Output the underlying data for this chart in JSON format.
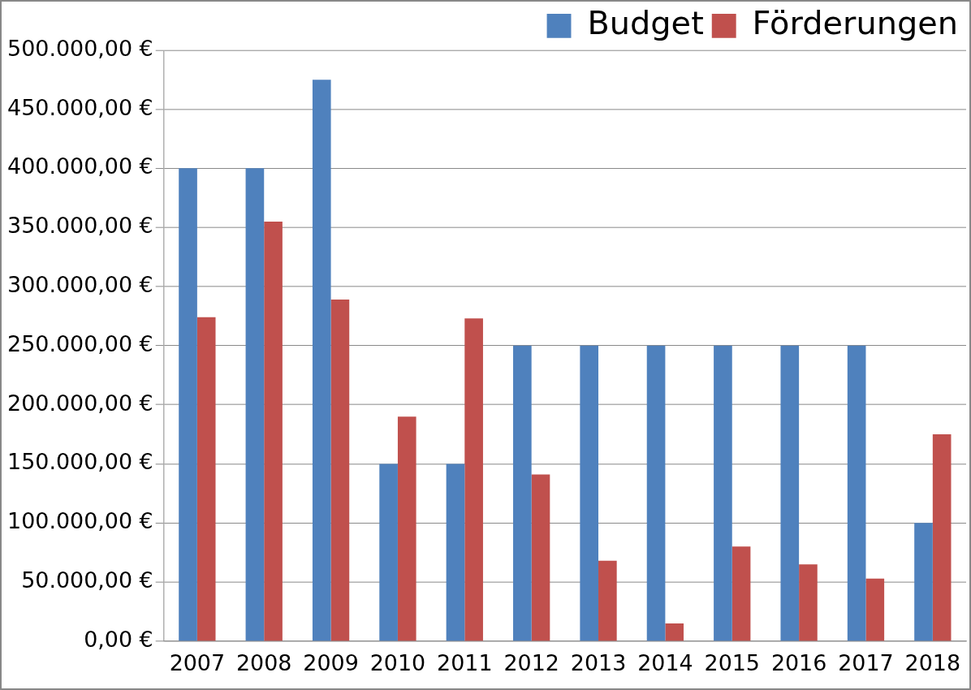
{
  "chart_data": {
    "type": "bar",
    "categories": [
      "2007",
      "2008",
      "2009",
      "2010",
      "2011",
      "2012",
      "2013",
      "2014",
      "2015",
      "2016",
      "2017",
      "2018"
    ],
    "series": [
      {
        "name": "Budget",
        "color": "#4f81bd",
        "values": [
          400000,
          400000,
          475000,
          150000,
          150000,
          250000,
          250000,
          250000,
          250000,
          250000,
          250000,
          100000
        ]
      },
      {
        "name": "Förderungen",
        "color": "#c0504d",
        "values": [
          274000,
          355000,
          289000,
          190000,
          273000,
          141000,
          68000,
          15000,
          80000,
          65000,
          53000,
          175000
        ]
      }
    ],
    "ylim": [
      0,
      500000
    ],
    "yticks": [
      {
        "value": 0,
        "label": "0,00 €"
      },
      {
        "value": 50000,
        "label": "50.000,00 €"
      },
      {
        "value": 100000,
        "label": "100.000,00 €"
      },
      {
        "value": 150000,
        "label": "150.000,00 €"
      },
      {
        "value": 200000,
        "label": "200.000,00 €"
      },
      {
        "value": 250000,
        "label": "250.000,00 €"
      },
      {
        "value": 300000,
        "label": "300.000,00 €"
      },
      {
        "value": 350000,
        "label": "350.000,00 €"
      },
      {
        "value": 400000,
        "label": "400.000,00 €"
      },
      {
        "value": 450000,
        "label": "450.000,00 €"
      },
      {
        "value": 500000,
        "label": "500.000,00 €"
      }
    ],
    "grid": "y",
    "legend": "top right"
  }
}
